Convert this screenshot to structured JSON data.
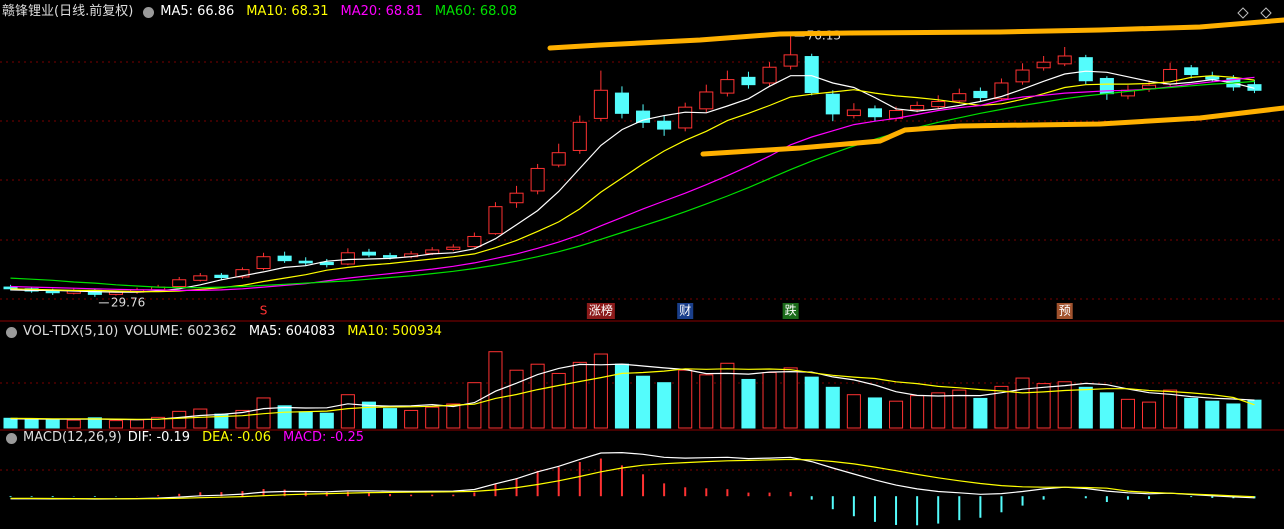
{
  "chart_data": [
    {
      "type": "candlestick",
      "title": "赣锋锂业(日线.前复权)",
      "open": [
        31.5,
        31.2,
        30.8,
        30.4,
        30.9,
        30.2,
        30.6,
        31.0,
        31.6,
        32.7,
        33.6,
        33.3,
        34.8,
        37.0,
        36.1,
        35.9,
        35.6,
        37.7,
        37.1,
        36.9,
        37.5,
        38.2,
        38.7,
        41.0,
        46.5,
        48.6,
        53.2,
        55.8,
        61.5,
        66.0,
        62.8,
        61.0,
        59.8,
        63.2,
        66.0,
        68.8,
        67.8,
        70.8,
        72.5,
        65.8,
        62.0,
        63.2,
        61.5,
        63.1,
        63.6,
        64.6,
        66.3,
        65.0,
        68.0,
        70.5,
        71.2,
        72.3,
        68.6,
        65.5,
        66.8,
        67.6,
        70.5,
        69.0,
        68.6,
        67.5
      ],
      "high": [
        31.9,
        31.6,
        31.2,
        31.3,
        31.2,
        30.9,
        31.4,
        31.9,
        33.3,
        34.0,
        34.0,
        35.0,
        37.6,
        37.8,
        36.8,
        36.5,
        38.4,
        38.3,
        37.6,
        37.9,
        38.6,
        39.1,
        41.2,
        46.6,
        49.5,
        53.4,
        57.0,
        62.0,
        70.0,
        67.2,
        64.0,
        62.0,
        64.3,
        67.5,
        70.0,
        69.8,
        71.5,
        76.13,
        73.0,
        66.5,
        64.2,
        63.8,
        63.6,
        64.5,
        65.6,
        66.8,
        67.0,
        68.6,
        71.3,
        72.6,
        74.2,
        72.8,
        69.0,
        67.4,
        68.3,
        71.4,
        71.0,
        69.8,
        69.2,
        68.3
      ],
      "low": [
        30.9,
        30.5,
        30.1,
        30.2,
        29.76,
        30.0,
        30.3,
        30.8,
        31.4,
        32.5,
        32.8,
        33.0,
        34.5,
        35.8,
        35.3,
        35.0,
        35.4,
        36.8,
        36.4,
        36.6,
        37.2,
        37.9,
        38.5,
        40.8,
        45.6,
        48.0,
        52.8,
        55.2,
        61.0,
        61.5,
        59.8,
        58.4,
        59.2,
        62.6,
        65.4,
        66.8,
        67.2,
        70.2,
        65.6,
        61.0,
        61.5,
        61.0,
        61.0,
        62.6,
        63.2,
        64.2,
        64.6,
        64.8,
        67.5,
        70.0,
        70.8,
        67.6,
        64.8,
        64.9,
        66.2,
        67.2,
        68.6,
        68.0,
        66.4,
        66.0
      ],
      "close": [
        31.2,
        30.8,
        30.5,
        30.9,
        30.2,
        30.6,
        31.0,
        31.5,
        32.8,
        33.5,
        33.2,
        34.6,
        36.9,
        36.2,
        35.8,
        35.5,
        37.6,
        37.2,
        36.8,
        37.4,
        38.1,
        38.6,
        40.5,
        45.8,
        48.2,
        52.6,
        55.4,
        60.8,
        66.5,
        62.4,
        60.8,
        59.6,
        63.5,
        66.2,
        68.4,
        67.5,
        70.6,
        72.8,
        66.1,
        62.3,
        63.0,
        61.8,
        62.9,
        63.8,
        64.5,
        65.9,
        65.2,
        67.8,
        70.1,
        71.5,
        72.6,
        68.2,
        65.9,
        66.5,
        67.4,
        70.2,
        69.3,
        68.5,
        67.1,
        66.5
      ],
      "up_color": "#ff3232",
      "down_color": "#54fcfc",
      "ylim": [
        26,
        79
      ],
      "series": [
        {
          "name": "MA5",
          "color": "#ffffff",
          "values": [
            31.0,
            30.9,
            30.9,
            30.8,
            30.7,
            30.6,
            30.6,
            30.8,
            31.2,
            31.9,
            32.8,
            33.5,
            34.2,
            35.0,
            35.3,
            36.1,
            36.4,
            36.5,
            36.6,
            36.9,
            37.4,
            37.6,
            38.3,
            40.1,
            42.6,
            45.1,
            48.5,
            52.6,
            56.7,
            59.5,
            61.2,
            62.0,
            62.6,
            62.5,
            63.7,
            65.0,
            67.2,
            69.1,
            69.1,
            67.8,
            67.0,
            65.2,
            63.2,
            62.8,
            63.2,
            63.8,
            64.5,
            65.4,
            66.7,
            68.1,
            69.4,
            69.9,
            69.7,
            68.9,
            68.1,
            67.6,
            67.9,
            68.4,
            67.8,
            66.86
          ]
        },
        {
          "name": "MA10",
          "color": "#ffff00",
          "values": [
            31.2,
            31.1,
            31.0,
            30.9,
            30.9,
            30.8,
            30.7,
            30.7,
            30.8,
            31.1,
            31.4,
            31.8,
            32.5,
            33.1,
            33.7,
            34.5,
            35.0,
            35.4,
            35.7,
            36.1,
            36.5,
            36.9,
            37.4,
            38.5,
            39.8,
            41.4,
            43.1,
            45.4,
            48.4,
            50.9,
            53.4,
            55.7,
            57.6,
            59.2,
            61.1,
            62.4,
            63.8,
            65.3,
            65.8,
            66.2,
            66.6,
            66.0,
            65.5,
            65.2,
            64.8,
            64.3,
            63.8,
            64.1,
            64.9,
            65.9,
            67.0,
            67.5,
            67.6,
            67.6,
            67.7,
            68.0,
            68.8,
            69.1,
            68.8,
            68.31
          ]
        },
        {
          "name": "MA20",
          "color": "#ff00ff",
          "values": [
            31.6,
            31.5,
            31.4,
            31.3,
            31.2,
            31.1,
            31.0,
            31.0,
            30.9,
            30.9,
            31.0,
            31.2,
            31.5,
            31.8,
            32.1,
            32.6,
            33.1,
            33.5,
            33.9,
            34.3,
            34.7,
            35.2,
            35.8,
            36.6,
            37.4,
            38.4,
            39.5,
            40.8,
            42.4,
            43.9,
            45.4,
            46.8,
            48.2,
            49.7,
            51.3,
            53.0,
            54.8,
            56.8,
            58.2,
            59.3,
            60.4,
            61.0,
            61.5,
            62.2,
            62.9,
            63.4,
            63.8,
            64.7,
            65.3,
            65.6,
            66.0,
            66.2,
            66.4,
            66.5,
            66.7,
            67.1,
            67.6,
            68.0,
            68.4,
            68.81
          ]
        },
        {
          "name": "MA60",
          "color": "#00e000",
          "values": [
            33.1,
            32.9,
            32.7,
            32.4,
            32.2,
            31.9,
            31.7,
            31.5,
            31.4,
            31.4,
            31.5,
            31.6,
            31.8,
            32.0,
            32.2,
            32.4,
            32.6,
            32.9,
            33.2,
            33.5,
            33.9,
            34.3,
            34.8,
            35.4,
            36.1,
            36.9,
            37.8,
            38.8,
            40.0,
            41.2,
            42.4,
            43.6,
            44.9,
            46.3,
            47.7,
            49.2,
            50.8,
            52.4,
            53.9,
            55.3,
            56.6,
            57.8,
            58.9,
            59.9,
            60.8,
            61.6,
            62.4,
            63.1,
            63.8,
            64.4,
            65.0,
            65.5,
            65.9,
            66.3,
            66.7,
            67.0,
            67.3,
            67.6,
            67.8,
            68.08
          ]
        }
      ],
      "events": [
        {
          "label": "S",
          "index": 12,
          "color": "#ff3232",
          "boxed": false
        },
        {
          "label": "涨榜",
          "index": 28,
          "color": "#8b1a1a",
          "boxed": true
        },
        {
          "label": "财",
          "index": 32,
          "color": "#1a3f8b",
          "boxed": true
        },
        {
          "label": "跌",
          "index": 37,
          "color": "#1a6b1a",
          "boxed": true
        },
        {
          "label": "预",
          "index": 50,
          "color": "#a0522d",
          "boxed": true
        }
      ]
    },
    {
      "type": "volume",
      "title": "VOL-TDX(5,10)",
      "up_color": "#ff3232",
      "down_color": "#54fcfc",
      "ylim": [
        0,
        1860000
      ],
      "series": [
        {
          "name": "VOLUME",
          "color": "#dddddd",
          "values": [
            210000,
            180000,
            195000,
            170000,
            220000,
            160000,
            175000,
            230000,
            360000,
            410000,
            300000,
            380000,
            650000,
            480000,
            350000,
            320000,
            720000,
            560000,
            420000,
            380000,
            450000,
            520000,
            980000,
            1650000,
            1250000,
            1380000,
            1180000,
            1420000,
            1600000,
            1380000,
            1120000,
            980000,
            1250000,
            1150000,
            1400000,
            1050000,
            1200000,
            1300000,
            1100000,
            880000,
            720000,
            650000,
            580000,
            700000,
            760000,
            820000,
            640000,
            900000,
            1080000,
            960000,
            1000000,
            880000,
            760000,
            620000,
            560000,
            820000,
            640000,
            580000,
            520000,
            602362
          ]
        },
        {
          "name": "MA5",
          "color": "#ffffff",
          "values": [
            200000,
            195000,
            193000,
            190000,
            195000,
            185000,
            180000,
            190000,
            228000,
            271000,
            295000,
            336000,
            420000,
            444000,
            432000,
            436000,
            524000,
            486000,
            474000,
            480000,
            506000,
            466000,
            550000,
            796000,
            970000,
            1156000,
            1288000,
            1376000,
            1366000,
            1382000,
            1340000,
            1300000,
            1266000,
            1176000,
            1180000,
            1166000,
            1210000,
            1220000,
            1210000,
            1106000,
            1040000,
            930000,
            786000,
            706000,
            692000,
            702000,
            700000,
            764000,
            840000,
            880000,
            916000,
            964000,
            936000,
            844000,
            764000,
            728000,
            680000,
            644000,
            628000,
            604083
          ]
        },
        {
          "name": "MA10",
          "color": "#ffff00",
          "values": [
            210000,
            205000,
            200000,
            198000,
            196000,
            192000,
            188000,
            190000,
            210000,
            232000,
            248000,
            265000,
            310000,
            342000,
            352000,
            366000,
            420000,
            448000,
            455000,
            458000,
            470000,
            495000,
            515000,
            640000,
            725000,
            830000,
            920000,
            1005000,
            1090000,
            1180000,
            1200000,
            1230000,
            1280000,
            1270000,
            1280000,
            1270000,
            1275000,
            1260000,
            1195000,
            1140000,
            1100000,
            1070000,
            1000000,
            960000,
            900000,
            870000,
            830000,
            800000,
            760000,
            780000,
            810000,
            830000,
            850000,
            850000,
            810000,
            790000,
            760000,
            720000,
            660000,
            500934
          ]
        }
      ]
    },
    {
      "type": "macd",
      "title": "MACD(12,26,9)",
      "up_color": "#ff3232",
      "down_color": "#54fcfc",
      "ylim": [
        -3.6,
        5.4
      ],
      "series": [
        {
          "name": "DIF",
          "color": "#ffffff",
          "values": [
            -0.3,
            -0.3,
            -0.32,
            -0.3,
            -0.33,
            -0.32,
            -0.28,
            -0.22,
            -0.1,
            0.05,
            0.12,
            0.25,
            0.48,
            0.55,
            0.55,
            0.52,
            0.62,
            0.63,
            0.58,
            0.56,
            0.58,
            0.6,
            0.78,
            1.45,
            2.05,
            2.85,
            3.5,
            4.3,
            5.05,
            5.1,
            4.9,
            4.55,
            4.45,
            4.5,
            4.55,
            4.4,
            4.45,
            4.55,
            4.05,
            3.3,
            2.6,
            1.9,
            1.3,
            0.85,
            0.55,
            0.4,
            0.22,
            0.3,
            0.55,
            0.85,
            1.05,
            0.9,
            0.6,
            0.4,
            0.28,
            0.35,
            0.2,
            0.05,
            -0.08,
            -0.19
          ]
        },
        {
          "name": "DEA",
          "color": "#ffff00",
          "values": [
            -0.25,
            -0.26,
            -0.27,
            -0.28,
            -0.29,
            -0.3,
            -0.29,
            -0.28,
            -0.24,
            -0.18,
            -0.12,
            -0.05,
            0.06,
            0.16,
            0.24,
            0.3,
            0.36,
            0.42,
            0.45,
            0.47,
            0.49,
            0.51,
            0.56,
            0.74,
            1.0,
            1.37,
            1.8,
            2.3,
            2.85,
            3.3,
            3.62,
            3.8,
            3.93,
            4.04,
            4.14,
            4.19,
            4.24,
            4.3,
            4.25,
            4.06,
            3.77,
            3.4,
            2.98,
            2.55,
            2.15,
            1.8,
            1.48,
            1.24,
            1.1,
            1.05,
            1.05,
            1.02,
            0.94,
            0.6,
            0.45,
            0.35,
            0.25,
            0.15,
            0.04,
            -0.06
          ]
        },
        {
          "name": "MACD",
          "color": "#ff00ff",
          "values": [
            -0.1,
            -0.08,
            -0.1,
            -0.04,
            -0.08,
            -0.04,
            0.02,
            0.12,
            0.28,
            0.46,
            0.48,
            0.6,
            0.84,
            0.78,
            0.62,
            0.44,
            0.52,
            0.42,
            0.26,
            0.18,
            0.18,
            0.18,
            0.44,
            1.42,
            2.1,
            2.96,
            3.4,
            4.0,
            4.4,
            3.6,
            2.56,
            1.5,
            1.04,
            0.92,
            0.82,
            0.42,
            0.42,
            0.5,
            -0.4,
            -1.52,
            -2.34,
            -3.0,
            -3.36,
            -3.4,
            -3.2,
            -2.8,
            -2.52,
            -1.88,
            -1.1,
            -0.4,
            0,
            -0.24,
            -0.68,
            -0.4,
            -0.34,
            0,
            -0.1,
            -0.2,
            -0.24,
            -0.25
          ]
        }
      ]
    }
  ]
}
